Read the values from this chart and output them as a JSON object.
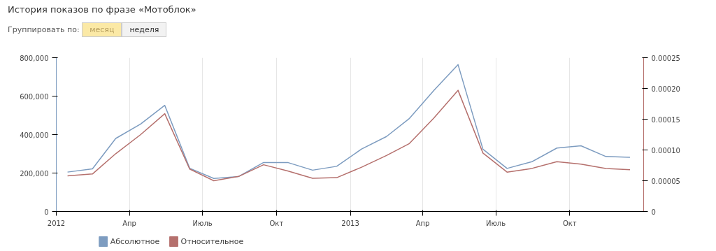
{
  "chart_data": {
    "type": "line",
    "title": "История показов по фразе «Мотоблок»",
    "annotations": [
      "Группировать по:",
      "месяц",
      "неделя"
    ],
    "x": [
      "2012-01-15",
      "2012-02-15",
      "2012-03-15",
      "2012-04-15",
      "2012-05-15",
      "2012-06-15",
      "2012-07-15",
      "2012-08-15",
      "2012-09-15",
      "2012-10-15",
      "2012-11-15",
      "2012-12-15",
      "2013-01-15",
      "2013-02-15",
      "2013-03-15",
      "2013-04-15",
      "2013-05-15",
      "2013-06-15",
      "2013-07-15",
      "2013-08-15",
      "2013-09-15",
      "2013-10-15",
      "2013-11-15",
      "2013-12-15"
    ],
    "series": [
      {
        "name": "Абсолютное",
        "color": "#7d9cc0",
        "values": [
          205000,
          222000,
          380000,
          455000,
          552000,
          225000,
          172000,
          182000,
          255000,
          255000,
          215000,
          235000,
          325000,
          390000,
          482000,
          630000,
          764000,
          324000,
          224000,
          259000,
          330000,
          342000,
          286000,
          282000
        ]
      },
      {
        "name": "Относительное",
        "color": "#b5706d",
        "axis": "y2",
        "values": [
          5.8e-05,
          6.1e-05,
          9.4e-05,
          0.000125,
          0.000159,
          6.9e-05,
          5e-05,
          5.7e-05,
          7.6e-05,
          6.6e-05,
          5.4e-05,
          5.5e-05,
          7.2e-05,
          9.1e-05,
          0.00011,
          0.000152,
          0.000197,
          9.5e-05,
          6.4e-05,
          7e-05,
          8.1e-05,
          7.7e-05,
          7e-05,
          6.8e-05
        ]
      }
    ],
    "xlim": [
      "2012-01-01",
      "2014-01-01"
    ],
    "xticks": [
      {
        "value": "2012-01-01",
        "label": "2012"
      },
      {
        "value": "2012-04-01",
        "label": "Апр"
      },
      {
        "value": "2012-07-01",
        "label": "Июль"
      },
      {
        "value": "2012-10-01",
        "label": "Окт"
      },
      {
        "value": "2013-01-01",
        "label": "2013"
      },
      {
        "value": "2013-04-01",
        "label": "Апр"
      },
      {
        "value": "2013-07-01",
        "label": "Июль"
      },
      {
        "value": "2013-10-01",
        "label": "Окт"
      }
    ],
    "ylim": [
      0,
      800000
    ],
    "yticks": [
      0,
      {
        "value": 200000,
        "label": "200,000"
      },
      {
        "value": 400000,
        "label": "400,000"
      },
      {
        "value": 600000,
        "label": "600,000"
      },
      {
        "value": 800000,
        "label": "800,000"
      }
    ],
    "y2lim": [
      0,
      0.00025
    ],
    "y2ticks": [
      0,
      {
        "value": 5e-05,
        "label": "0.00005"
      },
      {
        "value": 0.0001,
        "label": "0.00010"
      },
      {
        "value": 0.00015,
        "label": "0.00015"
      },
      {
        "value": 0.0002,
        "label": "0.00020"
      },
      {
        "value": 0.00025,
        "label": "0.00025"
      }
    ],
    "grid": "x",
    "legend": "bottom left",
    "marker": "none",
    "line_style": "solid"
  }
}
